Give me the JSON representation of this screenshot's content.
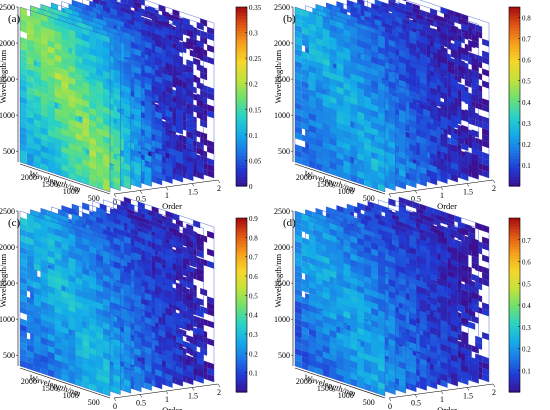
{
  "colormap": [
    "#3e0f91",
    "#2139d3",
    "#1d78e6",
    "#15aee8",
    "#2bd3c4",
    "#6fe06f",
    "#c2e23c",
    "#f6d72a",
    "#f6a21d",
    "#e25a14",
    "#a80f0f"
  ],
  "slice_color": "#2f4fcb",
  "chart_data": [
    {
      "type": "heatmap",
      "panel_label": "(a)",
      "ylabel": "Wavelength/nm",
      "xlabel": "Wavelength/nm",
      "zlabel": "Order",
      "wavelength_ticks": [
        500,
        1000,
        1500,
        2000,
        2500
      ],
      "order_ticks": [
        0,
        0.5,
        1,
        1.5,
        2
      ],
      "order_tick_labels": [
        "0",
        "0.5",
        "1",
        "1.5",
        "2"
      ],
      "wavelength_range": [
        350,
        2500
      ],
      "order_range": [
        0,
        2
      ],
      "orders": [
        0,
        0.2,
        0.4,
        0.6,
        0.8,
        1.0,
        1.2,
        1.4,
        1.6,
        1.8,
        2.0
      ],
      "colorbar": {
        "range": [
          0,
          0.35
        ],
        "ticks": [
          0,
          0.05,
          0.1,
          0.15,
          0.2,
          0.25,
          0.3,
          0.35
        ],
        "tick_labels": [
          "0",
          "0.05",
          "0.1",
          "0.15",
          "0.2",
          "0.25",
          "0.3",
          "0.35"
        ]
      },
      "slice_level": [
        0.55,
        0.48,
        0.4,
        0.32,
        0.25,
        0.18,
        0.13,
        0.09,
        0.07,
        0.05,
        0.04
      ]
    },
    {
      "type": "heatmap",
      "panel_label": "(b)",
      "ylabel": "Wavelength/nm",
      "xlabel": "Wavelength/nm",
      "zlabel": "Order",
      "wavelength_ticks": [
        500,
        1000,
        1500,
        2000,
        2500
      ],
      "order_ticks": [
        0,
        0.5,
        1,
        1.5,
        2
      ],
      "order_tick_labels": [
        "0",
        "0.5",
        "1",
        "1.5",
        "2"
      ],
      "wavelength_range": [
        350,
        2500
      ],
      "order_range": [
        0,
        2
      ],
      "orders": [
        0,
        0.2,
        0.4,
        0.6,
        0.8,
        1.0,
        1.2,
        1.4,
        1.6,
        1.8,
        2.0
      ],
      "colorbar": {
        "range": [
          0,
          0.85
        ],
        "ticks": [
          0.1,
          0.2,
          0.3,
          0.4,
          0.5,
          0.6,
          0.7,
          0.8
        ],
        "tick_labels": [
          "0.1",
          "0.2",
          "0.3",
          "0.4",
          "0.5",
          "0.6",
          "0.7",
          "0.8"
        ]
      },
      "slice_level": [
        0.32,
        0.28,
        0.24,
        0.2,
        0.17,
        0.14,
        0.11,
        0.09,
        0.07,
        0.05,
        0.04
      ]
    },
    {
      "type": "heatmap",
      "panel_label": "(c)",
      "ylabel": "Wavelength/nm",
      "xlabel": "Wavelength/nm",
      "zlabel": "Order",
      "wavelength_ticks": [
        500,
        1000,
        1500,
        2000,
        2500
      ],
      "order_ticks": [
        0,
        0.5,
        1,
        1.5,
        2
      ],
      "order_tick_labels": [
        "0",
        "0.5",
        "1",
        "1.5",
        "2"
      ],
      "wavelength_range": [
        350,
        2500
      ],
      "order_range": [
        0,
        2
      ],
      "orders": [
        0,
        0.2,
        0.4,
        0.6,
        0.8,
        1.0,
        1.2,
        1.4,
        1.6,
        1.8,
        2.0
      ],
      "colorbar": {
        "range": [
          0,
          0.9
        ],
        "ticks": [
          0.1,
          0.2,
          0.3,
          0.4,
          0.5,
          0.6,
          0.7,
          0.8,
          0.9
        ],
        "tick_labels": [
          "0.1",
          "0.2",
          "0.3",
          "0.4",
          "0.5",
          "0.6",
          "0.7",
          "0.8",
          "0.9"
        ]
      },
      "slice_level": [
        0.34,
        0.3,
        0.26,
        0.22,
        0.18,
        0.15,
        0.12,
        0.1,
        0.08,
        0.06,
        0.05
      ]
    },
    {
      "type": "heatmap",
      "panel_label": "(d)",
      "ylabel": "Wavelength/nm",
      "xlabel": "Wavelength/nm",
      "zlabel": "Order",
      "wavelength_ticks": [
        500,
        1000,
        1500,
        2000,
        2500
      ],
      "order_ticks": [
        0,
        0.5,
        1,
        1.5,
        2
      ],
      "order_tick_labels": [
        "0",
        "0.5",
        "1",
        "1.5",
        "2"
      ],
      "wavelength_range": [
        350,
        2500
      ],
      "order_range": [
        0,
        2
      ],
      "orders": [
        0,
        0.2,
        0.4,
        0.6,
        0.8,
        1.0,
        1.2,
        1.4,
        1.6,
        1.8,
        2.0
      ],
      "colorbar": {
        "range": [
          0,
          0.8
        ],
        "ticks": [
          0.1,
          0.2,
          0.3,
          0.4,
          0.5,
          0.6,
          0.7
        ],
        "tick_labels": [
          "0.1",
          "0.2",
          "0.3",
          "0.4",
          "0.5",
          "0.6",
          "0.7"
        ]
      },
      "slice_level": [
        0.3,
        0.26,
        0.22,
        0.19,
        0.16,
        0.13,
        0.11,
        0.09,
        0.07,
        0.06,
        0.05
      ]
    }
  ]
}
